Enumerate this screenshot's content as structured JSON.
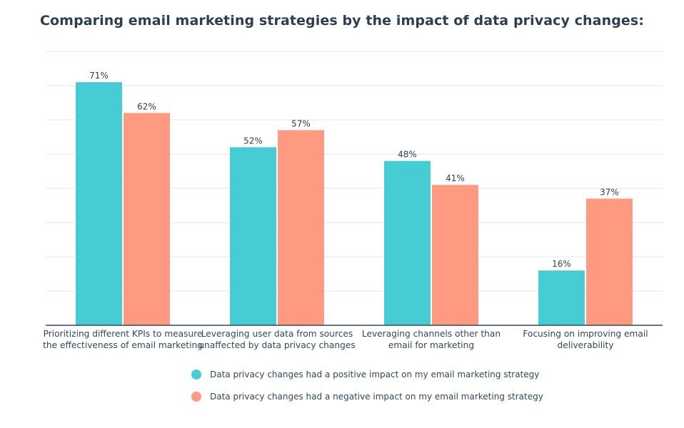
{
  "chart_data": {
    "type": "bar",
    "title": "Comparing email marketing strategies by the impact of data privacy changes:",
    "categories": [
      [
        "Prioritizing different KPIs to measure",
        "the effectiveness of email marketing"
      ],
      [
        "Leveraging user data from sources",
        "unaffected by data privacy changes"
      ],
      [
        "Leveraging channels other than",
        "email for marketing"
      ],
      [
        "Focusing on improving email",
        "deliverability"
      ]
    ],
    "series": [
      {
        "name": "Data privacy changes had a positive impact on my email marketing strategy",
        "color": "#47ccd4",
        "values": [
          71,
          52,
          48,
          16
        ],
        "labels": [
          "71%",
          "52%",
          "48%",
          "16%"
        ]
      },
      {
        "name": "Data privacy changes had a negative impact on my email marketing strategy",
        "color": "#ff9a82",
        "values": [
          62,
          57,
          41,
          37
        ],
        "labels": [
          "62%",
          "57%",
          "41%",
          "37%"
        ]
      }
    ],
    "xlabel": "",
    "ylabel": "",
    "ylim": [
      0,
      80
    ],
    "grid": true,
    "legend_position": "bottom"
  }
}
